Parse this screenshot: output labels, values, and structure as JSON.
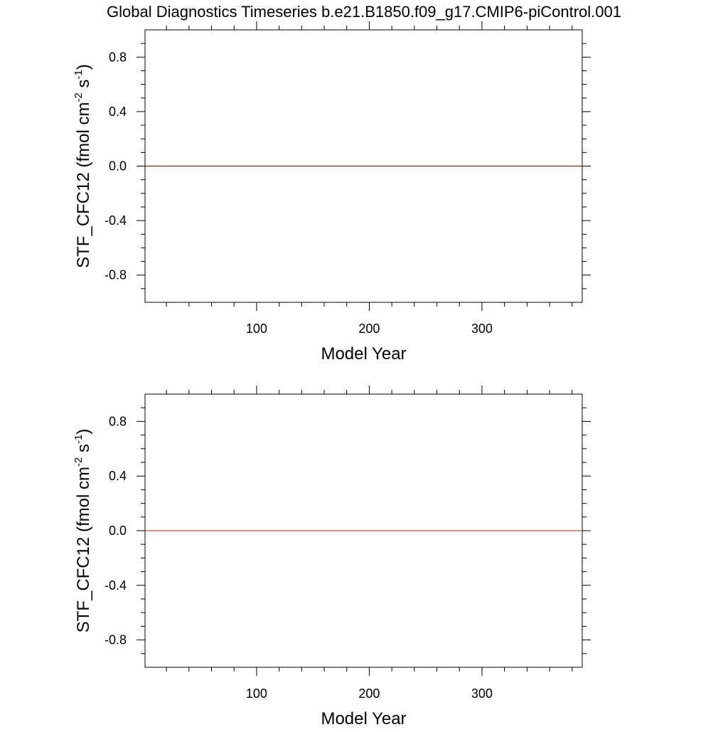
{
  "title": "Global Diagnostics Timeseries b.e21.B1850.f09_g17.CMIP6-piControl.001",
  "colors": {
    "background": "#ffffff",
    "axes": "#000000",
    "series": "#a0522d"
  },
  "chart_data": [
    {
      "type": "line",
      "xlabel": "Model Year",
      "ylabel_parts": [
        "STF_CFC12 (fmol cm",
        "-2",
        " s",
        "-1",
        ")"
      ],
      "xlim": [
        1,
        389
      ],
      "ylim": [
        -1.0,
        1.0
      ],
      "xticks_major": [
        100,
        200,
        300
      ],
      "xtick_labels": [
        "100",
        "200",
        "300"
      ],
      "xticks_minor": [
        20,
        40,
        60,
        80,
        120,
        140,
        160,
        180,
        220,
        240,
        260,
        280,
        320,
        340,
        360,
        380
      ],
      "yticks_major": [
        -0.8,
        -0.4,
        0.0,
        0.4,
        0.8
      ],
      "ytick_labels": [
        "-0.8",
        "-0.4",
        "0.0",
        "0.4",
        "0.8"
      ],
      "yticks_minor": [
        -0.9,
        -0.7,
        -0.6,
        -0.5,
        -0.3,
        -0.2,
        -0.1,
        0.1,
        0.2,
        0.3,
        0.5,
        0.6,
        0.7,
        0.9
      ],
      "grid": false,
      "series": [
        {
          "color": "#8b2500",
          "x": [
            1,
            389
          ],
          "y": [
            0.0,
            0.0
          ]
        }
      ]
    },
    {
      "type": "line",
      "xlabel": "Model Year",
      "ylabel_parts": [
        "STF_CFC12 (fmol cm",
        "-2",
        " s",
        "-1",
        ")"
      ],
      "xlim": [
        1,
        389
      ],
      "ylim": [
        -1.0,
        1.0
      ],
      "xticks_major": [
        100,
        200,
        300
      ],
      "xtick_labels": [
        "100",
        "200",
        "300"
      ],
      "xticks_minor": [
        20,
        40,
        60,
        80,
        120,
        140,
        160,
        180,
        220,
        240,
        260,
        280,
        320,
        340,
        360,
        380
      ],
      "yticks_major": [
        -0.8,
        -0.4,
        0.0,
        0.4,
        0.8
      ],
      "ytick_labels": [
        "-0.8",
        "-0.4",
        "0.0",
        "0.4",
        "0.8"
      ],
      "yticks_minor": [
        -0.9,
        -0.7,
        -0.6,
        -0.5,
        -0.3,
        -0.2,
        -0.1,
        0.1,
        0.2,
        0.3,
        0.5,
        0.6,
        0.7,
        0.9
      ],
      "grid": false,
      "series": [
        {
          "color": "#c0502a",
          "x": [
            1,
            389
          ],
          "y": [
            0.0,
            0.0
          ]
        }
      ]
    }
  ]
}
